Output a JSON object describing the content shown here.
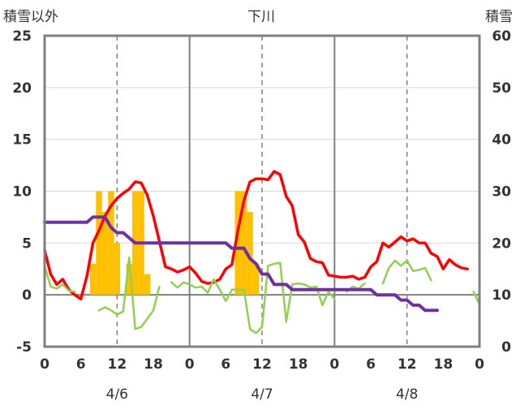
{
  "chart_data": {
    "type": "line",
    "title": "下川",
    "ylabel_left": "積雪以外",
    "ylabel_right": "積雪",
    "ylim_left": [
      -5,
      25
    ],
    "ylim_right": [
      0,
      60
    ],
    "yticks_left": [
      "-5",
      "0",
      "5",
      "10",
      "15",
      "20",
      "25"
    ],
    "yticks_right": [
      "0",
      "10",
      "20",
      "30",
      "40",
      "50",
      "60"
    ],
    "xlim_hours": [
      0,
      72
    ],
    "xticks": [
      "0",
      "6",
      "12",
      "18",
      "0",
      "6",
      "12",
      "18",
      "0",
      "6",
      "12",
      "18",
      "0"
    ],
    "date_labels": [
      "4/6",
      "4/7",
      "4/8"
    ],
    "grid": {
      "day_lines_solid": true,
      "noon_lines_dashed": true,
      "zero_line": true
    },
    "series": [
      {
        "color": "#ffc000",
        "axis": "left",
        "kind": "bar",
        "x": [
          8,
          9,
          10,
          11,
          12,
          14,
          15,
          16,
          17,
          32,
          33,
          34,
          35
        ],
        "values": [
          3,
          10,
          8,
          10,
          5,
          3,
          10,
          10,
          2,
          10,
          10,
          8,
          3
        ]
      },
      {
        "color": "#ff0000",
        "axis": "left",
        "kind": "line",
        "x": [
          0,
          1,
          2,
          3,
          4,
          5,
          6,
          7,
          8,
          9,
          10,
          11,
          12,
          13,
          14,
          15,
          16,
          17,
          18,
          19,
          20,
          21,
          22,
          23,
          24,
          25,
          26,
          27,
          28,
          29,
          30,
          31,
          32,
          33,
          34,
          35,
          36,
          37,
          38,
          39,
          40,
          41,
          42,
          43,
          44,
          45,
          46,
          47,
          48,
          49,
          50,
          51,
          52,
          53,
          54,
          55,
          56,
          57,
          58,
          59,
          60,
          61,
          62,
          63,
          64,
          65,
          66,
          67,
          68,
          69,
          70,
          71,
          72
        ],
        "values": [
          4.3,
          2,
          1,
          1.5,
          0.5,
          0,
          -0.4,
          1.8,
          5,
          6.2,
          7.6,
          8.6,
          9.3,
          9.8,
          10.2,
          10.9,
          10.8,
          9.6,
          7.6,
          5.2,
          2.7,
          2.5,
          2.2,
          2.4,
          2.7,
          2.1,
          1.3,
          1.1,
          1.2,
          1.5,
          2.5,
          2.9,
          6.2,
          9.1,
          10.9,
          11.2,
          11.2,
          11.1,
          11.9,
          11.6,
          9.5,
          8.6,
          5.8,
          5.1,
          3.5,
          3.2,
          3.1,
          1.9,
          1.8,
          1.7,
          1.7,
          1.8,
          1.5,
          1.7,
          2.7,
          3.2,
          5,
          4.6,
          5.1,
          5.6,
          5.2,
          5.4,
          5,
          5,
          4,
          3.7,
          2.5,
          3.4,
          2.9,
          2.6,
          2.5,
          null,
          null
        ]
      },
      {
        "color": "#92d050",
        "axis": "left",
        "kind": "line",
        "x": [
          0,
          1,
          2,
          3,
          4,
          5,
          6,
          7,
          8,
          9,
          10,
          11,
          12,
          13,
          14,
          15,
          16,
          17,
          18,
          19,
          20,
          21,
          22,
          23,
          24,
          25,
          26,
          27,
          28,
          29,
          30,
          31,
          32,
          33,
          34,
          35,
          36,
          37,
          38,
          39,
          40,
          41,
          42,
          43,
          44,
          45,
          46,
          47,
          48,
          49,
          50,
          51,
          52,
          53,
          54,
          55,
          56,
          57,
          58,
          59,
          60,
          61,
          62,
          63,
          64,
          65,
          66,
          67,
          68,
          69,
          70,
          71,
          72
        ],
        "values": [
          2.8,
          0.8,
          0.6,
          1,
          0.4,
          0.3,
          null,
          null,
          null,
          -1.5,
          -1.2,
          -1.5,
          -1.9,
          -1.6,
          3.6,
          -3.3,
          -3.1,
          -2.3,
          -1.5,
          0.8,
          null,
          1.2,
          0.7,
          1.2,
          1,
          0.7,
          0.8,
          0.2,
          1.5,
          0.5,
          -0.6,
          0.5,
          0.5,
          0.5,
          -3.3,
          -3.7,
          -3.1,
          2.8,
          3,
          3.1,
          -2.6,
          1,
          1.1,
          1,
          0.7,
          0.8,
          -1,
          0.3,
          -0.4,
          null,
          0.3,
          0.8,
          0.6,
          1.1,
          null,
          null,
          1.1,
          2.6,
          3.3,
          2.8,
          3.3,
          2.3,
          2.4,
          2.6,
          1.4,
          null,
          null,
          null,
          null,
          null,
          null,
          0.3,
          -0.9
        ]
      },
      {
        "color": "#7030a0",
        "axis": "right",
        "kind": "line",
        "x": [
          0,
          1,
          2,
          3,
          4,
          5,
          6,
          7,
          8,
          9,
          10,
          11,
          12,
          13,
          14,
          15,
          16,
          17,
          18,
          19,
          20,
          21,
          22,
          23,
          24,
          25,
          26,
          27,
          28,
          29,
          30,
          31,
          32,
          33,
          34,
          35,
          36,
          37,
          38,
          39,
          40,
          41,
          42,
          43,
          44,
          45,
          46,
          47,
          48,
          49,
          50,
          51,
          52,
          53,
          54,
          55,
          56,
          57,
          58,
          59,
          60,
          61,
          62,
          63,
          64,
          65
        ],
        "values": [
          24,
          24,
          24,
          24,
          24,
          24,
          24,
          24,
          25,
          25,
          25,
          23,
          22,
          22,
          21,
          20,
          20,
          20,
          20,
          20,
          20,
          20,
          20,
          20,
          20,
          20,
          20,
          20,
          20,
          20,
          20,
          19,
          19,
          19,
          17,
          16,
          14,
          14,
          12,
          12,
          12,
          11,
          11,
          11,
          11,
          11,
          11,
          11,
          11,
          11,
          11,
          11,
          11,
          11,
          11,
          10,
          10,
          10,
          10,
          9,
          9,
          8,
          8,
          7,
          7,
          7
        ]
      }
    ]
  }
}
